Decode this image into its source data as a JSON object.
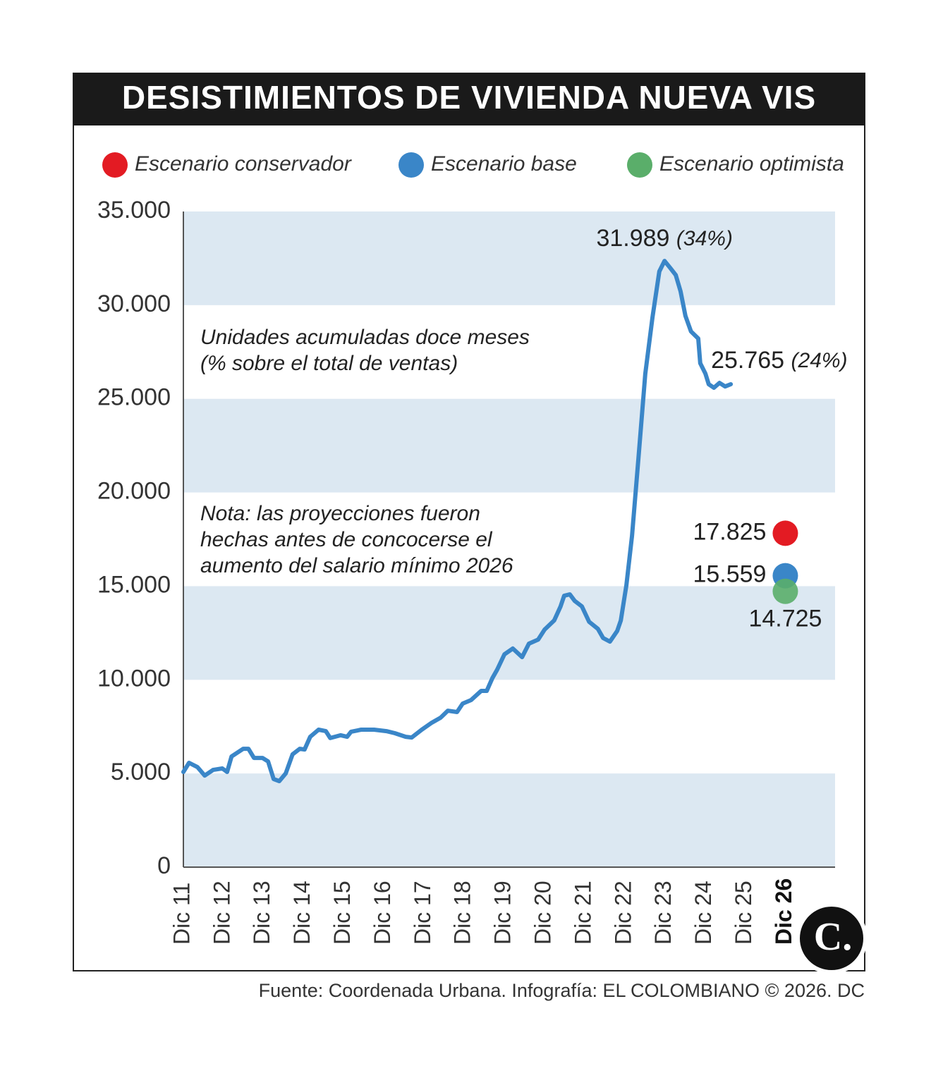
{
  "chart_data": {
    "type": "line",
    "title": "DESISTIMIENTOS DE VIVIENDA NUEVA VIS",
    "notes": [
      [
        "Unidades acumuladas doce meses",
        "(% sobre el total de ventas)"
      ],
      [
        "Nota: las proyecciones fueron",
        "hechas antes de concocerse el",
        "aumento del salario mínimo 2026"
      ]
    ],
    "annotations": [
      {
        "label": "31.989",
        "share": "(34%)"
      },
      {
        "label": "25.765",
        "share": "(24%)"
      }
    ],
    "source": "Fuente: Coordenada Urbana. Infografía: EL COLOMBIANO © 2026. DC",
    "logo": "C.",
    "grid": "bands",
    "band_color": "#dce8f2",
    "ylim": [
      0,
      35000
    ],
    "yticks": [
      0,
      {
        "value": 5000,
        "label": "5.000"
      },
      {
        "value": 10000,
        "label": "10.000"
      },
      {
        "value": 15000,
        "label": "15.000"
      },
      {
        "value": 20000,
        "label": "20.000"
      },
      {
        "value": 25000,
        "label": "25.000"
      },
      {
        "value": 30000,
        "label": "30.000"
      },
      {
        "value": 35000,
        "label": "35.000"
      }
    ],
    "xlim": [
      2011.92,
      2028.16
    ],
    "xticks": [
      {
        "value": 2011.92,
        "label": "Dic 11"
      },
      {
        "value": 2012.92,
        "label": "Dic 12"
      },
      {
        "value": 2013.92,
        "label": "Dic 13"
      },
      {
        "value": 2014.92,
        "label": "Dic 14"
      },
      {
        "value": 2015.92,
        "label": "Dic 15"
      },
      {
        "value": 2016.92,
        "label": "Dic 16"
      },
      {
        "value": 2017.92,
        "label": "Dic 17"
      },
      {
        "value": 2018.92,
        "label": "Dic 18"
      },
      {
        "value": 2019.92,
        "label": "Dic 19"
      },
      {
        "value": 2020.92,
        "label": "Dic 20"
      },
      {
        "value": 2021.92,
        "label": "Dic 21"
      },
      {
        "value": 2022.92,
        "label": "Dic 22"
      },
      {
        "value": 2023.92,
        "label": "Dic 23"
      },
      {
        "value": 2024.92,
        "label": "Dic 24"
      },
      {
        "value": 2025.92,
        "label": "Dic 25"
      },
      {
        "value": 2026.92,
        "label": "Dic 26"
      }
    ],
    "series": [
      {
        "color": "#3a86c8",
        "x": [
          2011.92,
          2012.06,
          2012.27,
          2012.45,
          2012.66,
          2012.89,
          2013.01,
          2013.12,
          2013.41,
          2013.54,
          2013.68,
          2013.89,
          2014.03,
          2014.17,
          2014.31,
          2014.47,
          2014.64,
          2014.82,
          2014.94,
          2015.08,
          2015.29,
          2015.47,
          2015.58,
          2015.84,
          2016.0,
          2016.1,
          2016.35,
          2016.67,
          2016.98,
          2017.19,
          2017.46,
          2017.61,
          2017.86,
          2018.11,
          2018.33,
          2018.51,
          2018.74,
          2018.88,
          2019.09,
          2019.34,
          2019.48,
          2019.62,
          2019.74,
          2019.92,
          2020.13,
          2020.36,
          2020.53,
          2020.76,
          2020.92,
          2021.16,
          2021.32,
          2021.41,
          2021.55,
          2021.67,
          2021.85,
          2022.03,
          2022.25,
          2022.38,
          2022.55,
          2022.73,
          2022.82,
          2022.96,
          2023.1,
          2023.26,
          2023.43,
          2023.61,
          2023.78,
          2023.91,
          2024.05,
          2024.19,
          2024.31,
          2024.43,
          2024.57,
          2024.75,
          2024.8,
          2024.93,
          2025.01,
          2025.14,
          2025.28,
          2025.42,
          2025.56
        ],
        "values": [
          5080,
          5570,
          5340,
          4890,
          5190,
          5270,
          5080,
          5910,
          6320,
          6320,
          5830,
          5830,
          5640,
          4700,
          4590,
          5000,
          6020,
          6320,
          6280,
          6960,
          7340,
          7260,
          6890,
          7040,
          6960,
          7230,
          7340,
          7340,
          7260,
          7150,
          6960,
          6920,
          7340,
          7710,
          7980,
          8350,
          8280,
          8730,
          8920,
          9410,
          9410,
          10090,
          10540,
          11360,
          11670,
          11210,
          11930,
          12150,
          12680,
          13170,
          13920,
          14490,
          14560,
          14220,
          13920,
          13100,
          12720,
          12230,
          12040,
          12610,
          13170,
          15050,
          17690,
          21830,
          26340,
          29350,
          31800,
          32360,
          31990,
          31610,
          30740,
          29430,
          28600,
          28220,
          26900,
          26340,
          25780,
          25590,
          25850,
          25660,
          25780
        ]
      }
    ],
    "scenarios": [
      {
        "name": "Escenario conservador",
        "color": "#e31b23",
        "x": 2026.92,
        "value": 17825,
        "value_label": "17.825"
      },
      {
        "name": "Escenario base",
        "color": "#3a86c8",
        "x": 2026.92,
        "value": 15559,
        "value_label": "15.559"
      },
      {
        "name": "Escenario optimista",
        "color": "#5aae6a",
        "x": 2026.92,
        "value": 14725,
        "value_label": "14.725"
      }
    ]
  }
}
